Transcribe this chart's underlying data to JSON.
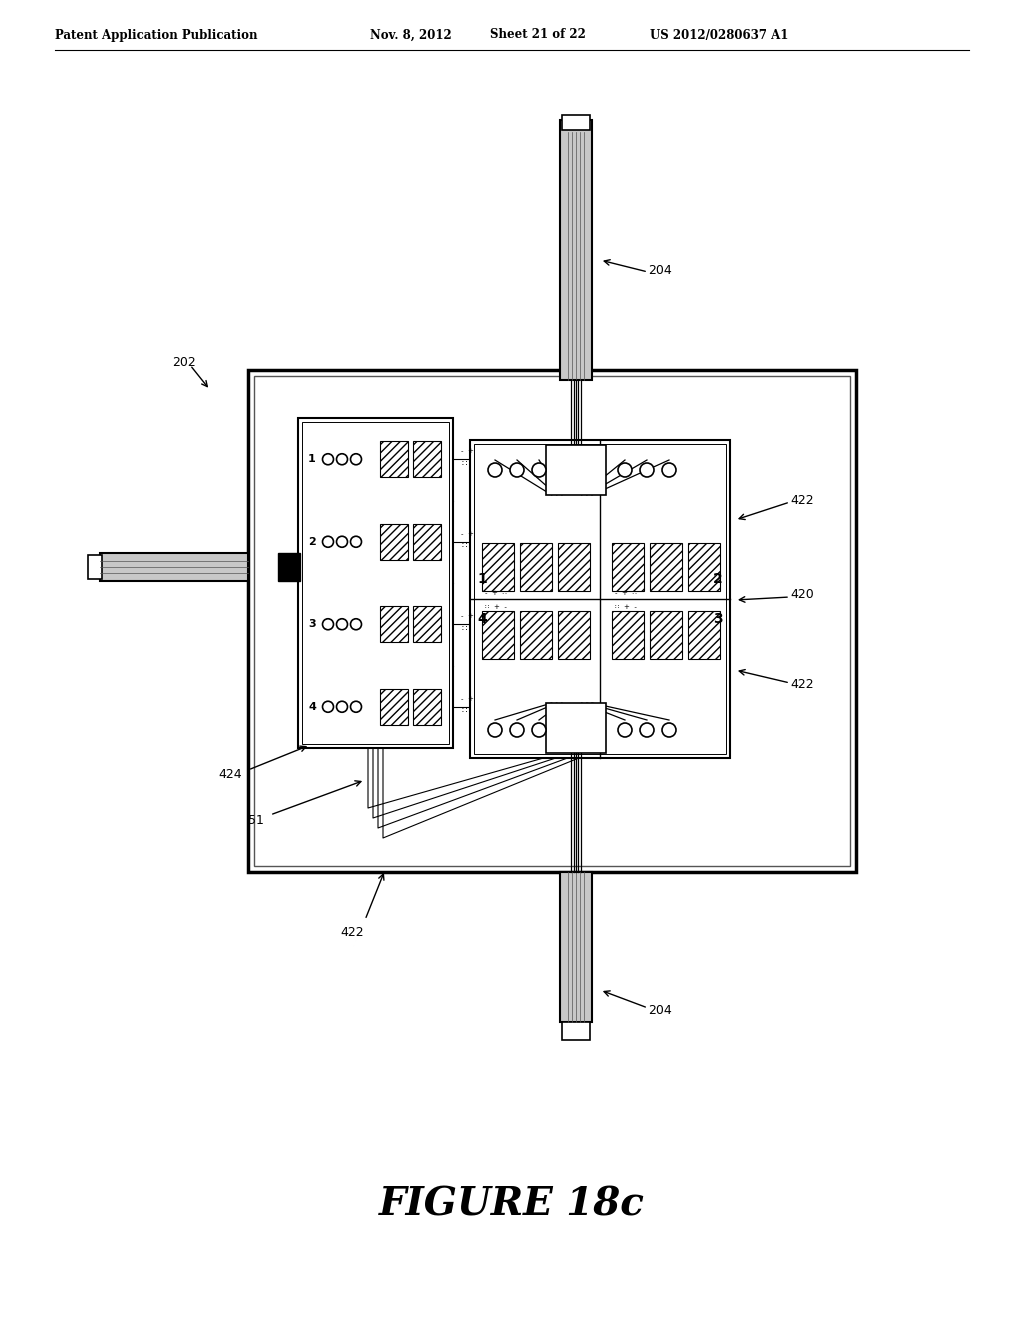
{
  "bg_color": "#ffffff",
  "header_text": "Patent Application Publication",
  "header_date": "Nov. 8, 2012",
  "header_sheet": "Sheet 21 of 22",
  "header_patent": "US 2012/0280637 A1",
  "figure_label": "FIGURE 18c",
  "line_color": "#1a1a1a",
  "gray_cable": "#c8c8c8",
  "light_gray": "#e8e8e8"
}
